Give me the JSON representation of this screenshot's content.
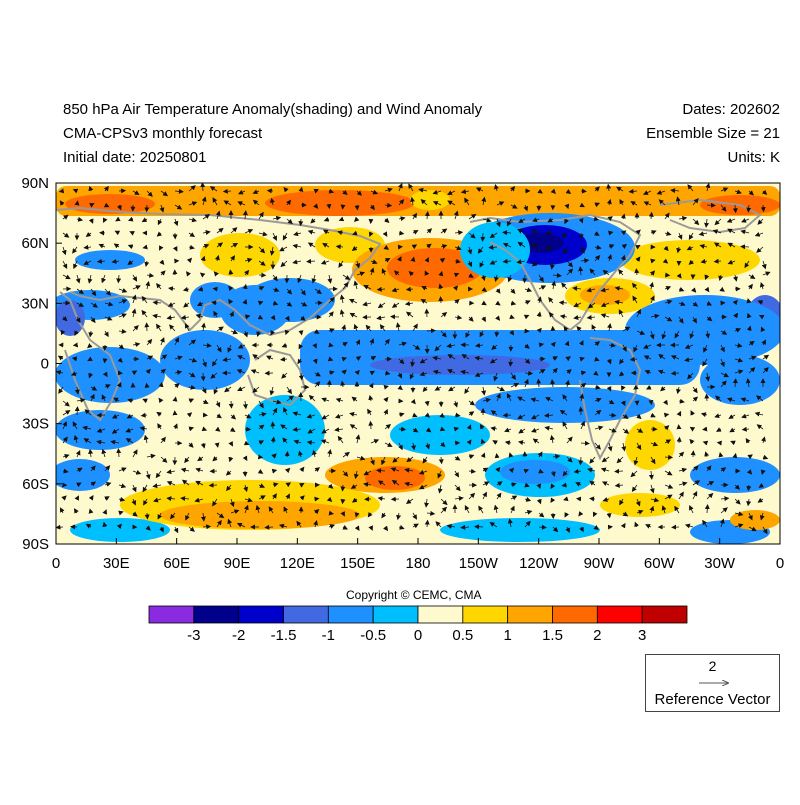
{
  "header": {
    "title": "850 hPa Air Temperature Anomaly(shading) and Wind Anomaly",
    "model": "CMA-CPSv3 monthly forecast",
    "initial_date": "Initial date: 20250801",
    "dates": "Dates: 202602",
    "ensemble": "Ensemble Size = 21",
    "units": "Units: K"
  },
  "map": {
    "lat_labels": [
      "90N",
      "60N",
      "30N",
      "0",
      "30S",
      "60S",
      "90S"
    ],
    "lon_labels": [
      "0",
      "30E",
      "60E",
      "90E",
      "120E",
      "150E",
      "180",
      "150W",
      "120W",
      "90W",
      "60W",
      "30W",
      "0"
    ],
    "projection": "cylindrical equidistant",
    "lon_range": [
      0,
      360
    ],
    "lat_range": [
      -90,
      90
    ]
  },
  "colorbar": {
    "colors": [
      "#8a2be2",
      "#00008b",
      "#0000cd",
      "#4169e1",
      "#1e90ff",
      "#00bfff",
      "#fffacd",
      "#ffd700",
      "#ffa500",
      "#ff6a00",
      "#ff0000",
      "#c00000"
    ],
    "labels": [
      "-3",
      "-2",
      "-1.5",
      "-1",
      "-0.5",
      "0",
      "0.5",
      "1",
      "1.5",
      "2",
      "3"
    ]
  },
  "copyright": "Copyright © CEMC, CMA",
  "reference_vector": {
    "magnitude": "2",
    "label": "Reference Vector"
  }
}
